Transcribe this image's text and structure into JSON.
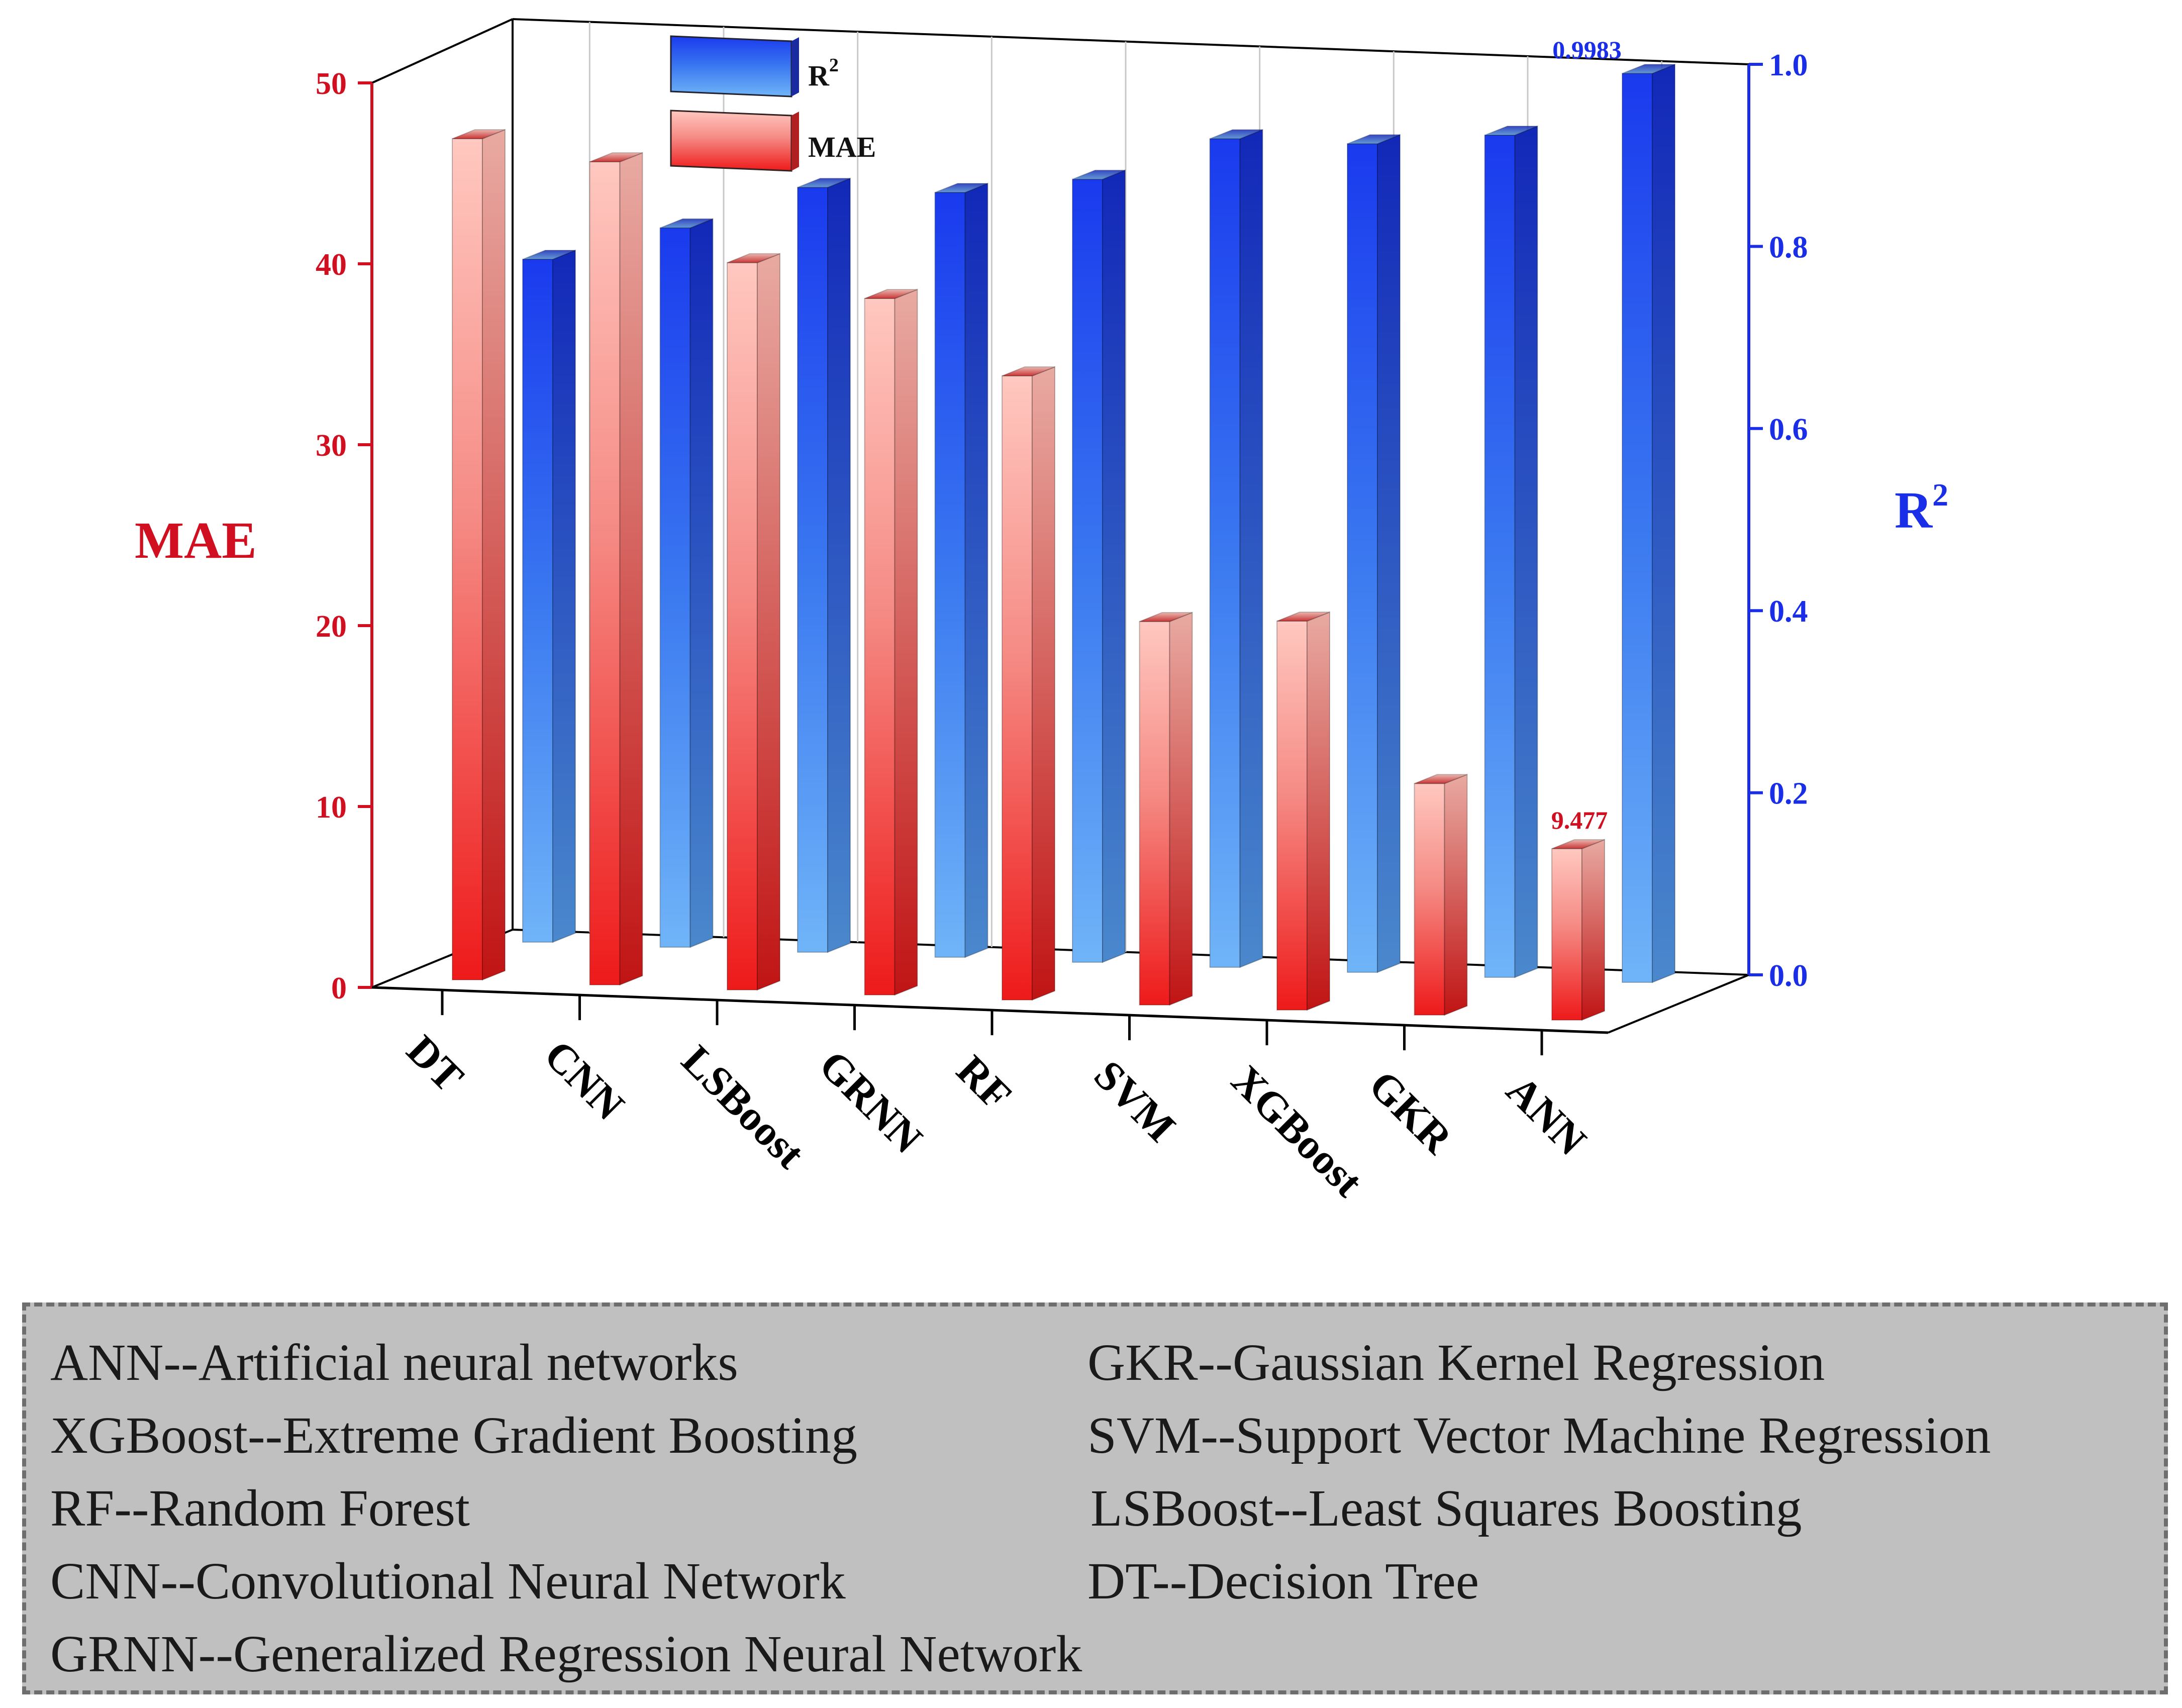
{
  "chart_data": {
    "type": "bar",
    "title": "",
    "xlabel": "",
    "categories": [
      "DT",
      "CNN",
      "LSBoost",
      "GRNN",
      "RF",
      "SVM",
      "XGBoost",
      "GKR",
      "ANN"
    ],
    "series": [
      {
        "name": "MAE",
        "axis": "left",
        "values": [
          46.5,
          45.5,
          40.2,
          38.5,
          34.5,
          21.2,
          21.5,
          12.8,
          9.477
        ]
      },
      {
        "name": "R2",
        "axis": "right",
        "values": [
          0.75,
          0.79,
          0.84,
          0.84,
          0.86,
          0.91,
          0.91,
          0.925,
          0.9983
        ]
      }
    ],
    "left_axis": {
      "label": "MAE",
      "ylim": [
        0,
        50
      ],
      "ticks": [
        "0",
        "10",
        "20",
        "30",
        "40",
        "50"
      ]
    },
    "right_axis": {
      "label": "R",
      "label_superscript": "2",
      "ylim": [
        0.0,
        1.0
      ],
      "ticks": [
        "0.0",
        "0.2",
        "0.4",
        "0.6",
        "0.8",
        "1.0"
      ]
    },
    "legend": {
      "placement": "top-left inside",
      "entries": [
        {
          "name": "R",
          "superscript": "2"
        },
        {
          "name": "MAE"
        }
      ]
    },
    "annotations": [
      {
        "text": "9.477",
        "series": "MAE",
        "category": "ANN"
      },
      {
        "text": "0.9983",
        "series": "R2",
        "category": "ANN"
      }
    ],
    "colors": {
      "mae_axis": "#d01020",
      "r2_axis": "#1a2ee8",
      "mae_top": "#ffc8c0",
      "mae_bottom": "#ee1a1a",
      "r2_top": "#1a3aee",
      "r2_bottom": "#70b4f8"
    }
  },
  "abbreviations": {
    "left": [
      "ANN--Artificial neural networks",
      "XGBoost--Extreme Gradient Boosting",
      "RF--Random Forest",
      "CNN--Convolutional Neural Network",
      "GRNN--Generalized Regression Neural Network"
    ],
    "right": [
      "GKR--Gaussian Kernel Regression",
      "SVM--Support Vector Machine Regression",
      "LSBoost--Least Squares Boosting",
      "DT--Decision Tree"
    ]
  }
}
